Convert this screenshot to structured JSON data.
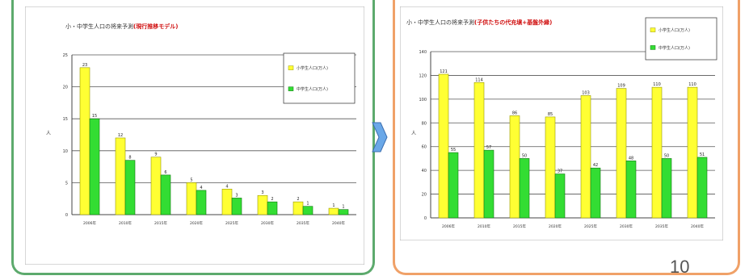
{
  "page_number": "10",
  "colors": {
    "left_border": "#5daa6d",
    "right_border": "#f0a168",
    "bar_yellow": "#ffff33",
    "bar_green": "#33dd33",
    "title_red": "#d01010",
    "arrow": "#6aa8e8"
  },
  "chart_data": [
    {
      "type": "bar",
      "title": "小・中学生人口の将来予測",
      "title_suffix": "(現行推移モデル)",
      "categories": [
        "2006年",
        "2010年",
        "2015年",
        "2020年",
        "2025年",
        "2030年",
        "2035年",
        "2040年"
      ],
      "series": [
        {
          "name": "小学生人口(万人)",
          "values": [
            23,
            12,
            9,
            5,
            4,
            3,
            2,
            1
          ],
          "value_labels": [
            "23",
            "12",
            "9",
            "5",
            "4",
            "3",
            "2",
            "1"
          ]
        },
        {
          "name": "中学生人口(万人)",
          "values": [
            15,
            8.5,
            6.2,
            3.8,
            2.6,
            2.0,
            1.3,
            0.8
          ],
          "value_labels": [
            "15",
            "8",
            "6",
            "4",
            "3",
            "2",
            "1",
            "1"
          ]
        }
      ],
      "ylabel": "人",
      "ylim": [
        0,
        25
      ],
      "yticks": [
        0,
        5,
        10,
        15,
        20,
        25
      ],
      "grid": true,
      "legend_placement": "top-right"
    },
    {
      "type": "bar",
      "title": "小・中学生人口の将来予測",
      "title_suffix": "(子供たちの代充塡+基盤外縁)",
      "categories": [
        "2006年",
        "2010年",
        "2015年",
        "2020年",
        "2025年",
        "2030年",
        "2035年",
        "2040年"
      ],
      "series": [
        {
          "name": "小学生人口(万人)",
          "values": [
            121,
            114,
            86,
            85,
            103,
            109,
            110,
            110
          ],
          "value_labels": [
            "121",
            "114",
            "86",
            "85",
            "103",
            "109",
            "110",
            "110"
          ]
        },
        {
          "name": "中学生人口(万人)",
          "values": [
            55,
            57,
            50,
            37,
            42,
            48,
            50,
            51
          ],
          "value_labels": [
            "55",
            "57",
            "50",
            "37",
            "42",
            "48",
            "50",
            "51"
          ]
        }
      ],
      "ylabel": "人",
      "ylim": [
        0,
        140
      ],
      "yticks": [
        0,
        20,
        40,
        60,
        80,
        100,
        120,
        140
      ],
      "grid": true,
      "legend_placement": "top-right"
    }
  ]
}
